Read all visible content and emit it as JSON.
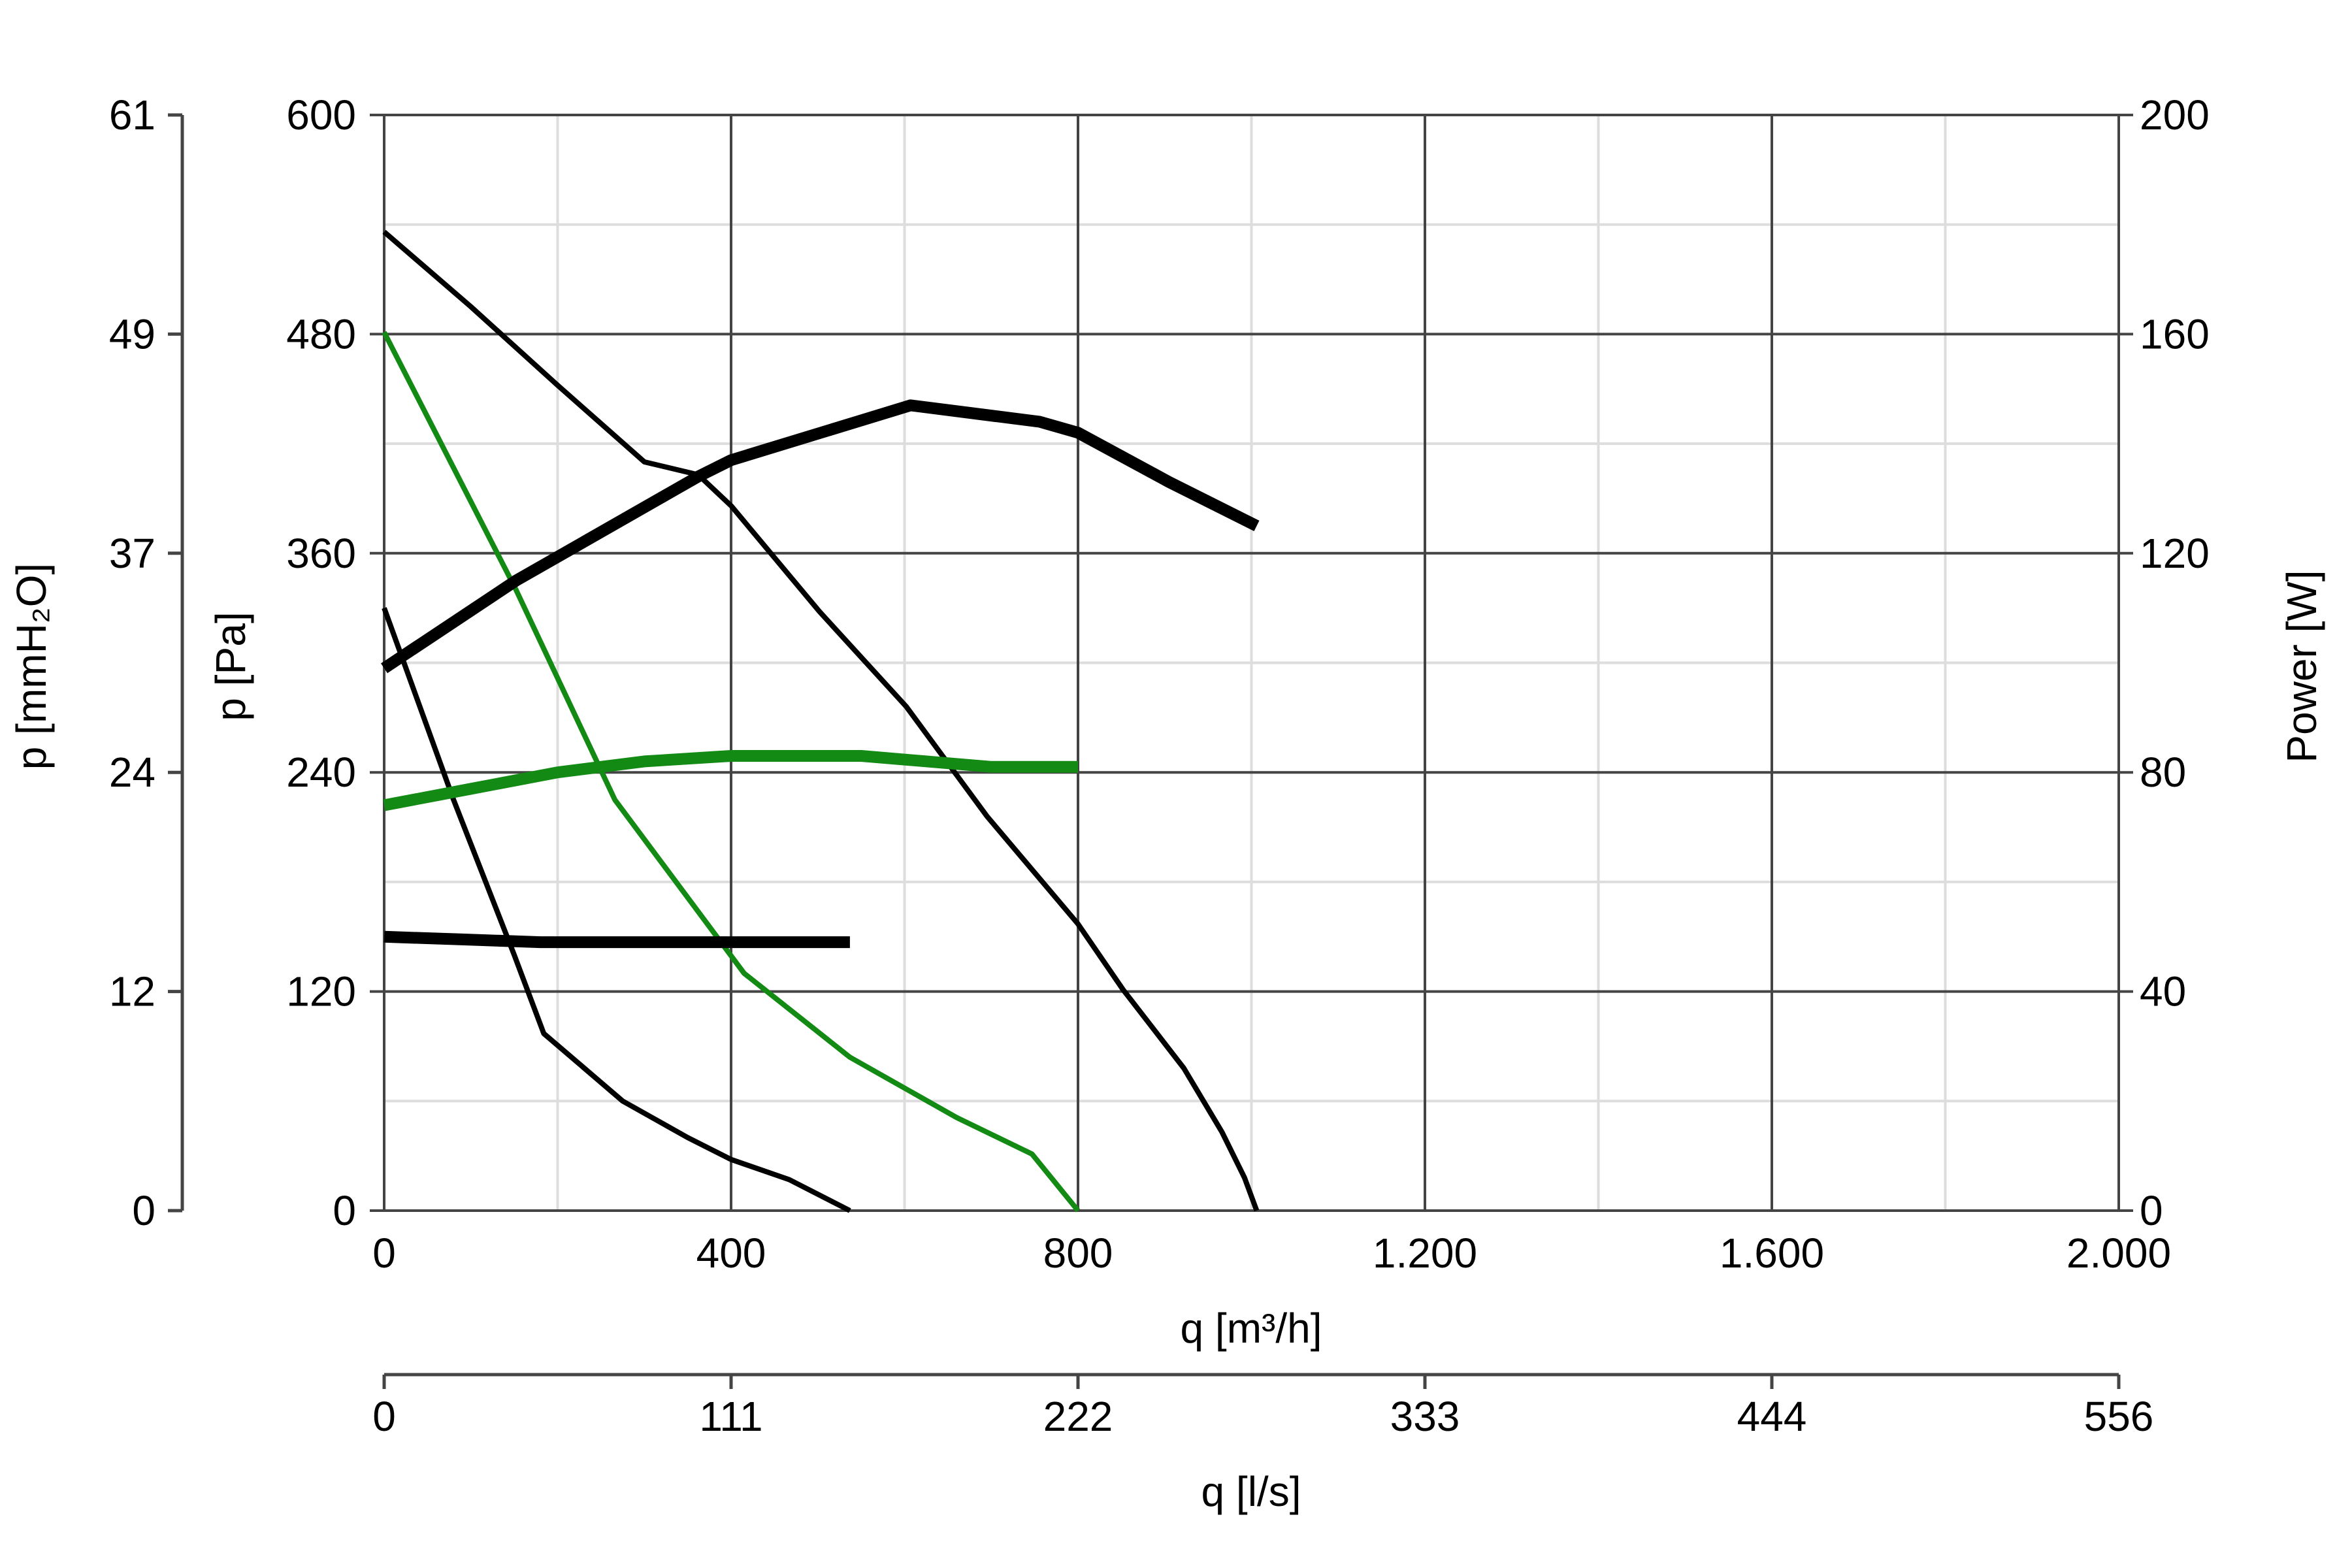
{
  "chart_data": {
    "type": "line",
    "xlabel": "q [m³/h]",
    "xlabel2": "q [l/s]",
    "ylabel": "p [Pa]",
    "ylabel_left2": "p [mmH₂O]",
    "ylabel_right": "Power [W]",
    "xlim": [
      0,
      2000
    ],
    "ylim": [
      0,
      600
    ],
    "ylim_right": [
      0,
      200
    ],
    "grid": true,
    "x_ticks": [
      "0",
      "400",
      "800",
      "1.200",
      "1.600",
      "2.000"
    ],
    "x2_ticks": [
      "0",
      "111",
      "222",
      "333",
      "444",
      "556"
    ],
    "y_ticks": [
      "0",
      "120",
      "240",
      "360",
      "480",
      "600"
    ],
    "y_left2_ticks": [
      "0",
      "12",
      "24",
      "37",
      "49",
      "61"
    ],
    "y_right_ticks": [
      "0",
      "40",
      "80",
      "120",
      "160",
      "200"
    ],
    "colors": {
      "black": "#000000",
      "green": "#138a13",
      "grid_major": "#444444",
      "grid_minor": "#dddddd"
    },
    "series": [
      {
        "axis": "pressure",
        "color": "#000000",
        "weight": "thin",
        "x": [
          0,
          100,
          200,
          300,
          362,
          400,
          502,
          602,
          695,
          800,
          852,
          922,
          966,
          992,
          1006
        ],
        "y": [
          536,
          495,
          452,
          410,
          403,
          386,
          328,
          276,
          216,
          157,
          121,
          78,
          43,
          18,
          0
        ]
      },
      {
        "axis": "pressure",
        "color": "#000000",
        "weight": "thin",
        "x": [
          0,
          80,
          150,
          184,
          275,
          350,
          400,
          467,
          537
        ],
        "y": [
          330,
          225,
          140,
          97,
          60,
          40,
          28,
          17,
          0
        ]
      },
      {
        "axis": "pressure",
        "color": "#138a13",
        "weight": "thin",
        "x": [
          0,
          152,
          266,
          415,
          537,
          660,
          747,
          800
        ],
        "y": [
          481,
          340,
          225,
          130,
          84,
          51,
          31,
          0
        ]
      },
      {
        "axis": "power",
        "color": "#000000",
        "weight": "thick",
        "x": [
          0,
          152,
          362,
          400,
          607,
          756,
          800,
          905,
          1006
        ],
        "y": [
          99,
          115,
          134,
          137,
          147,
          144,
          142,
          133,
          125
        ]
      },
      {
        "axis": "power",
        "color": "#138a13",
        "weight": "thick",
        "x": [
          0,
          100,
          200,
          300,
          400,
          550,
          700,
          800
        ],
        "y": [
          74,
          77,
          80,
          82,
          83,
          83,
          81,
          81
        ]
      },
      {
        "axis": "power",
        "color": "#000000",
        "weight": "thick",
        "x": [
          0,
          90,
          180,
          537
        ],
        "y": [
          50,
          49.5,
          49,
          49
        ]
      }
    ]
  }
}
